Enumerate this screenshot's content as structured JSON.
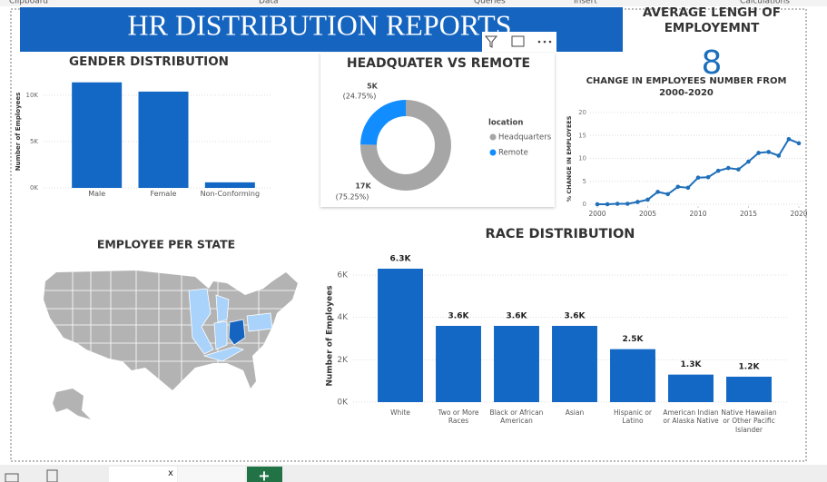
{
  "ribbon": [
    "Clipboard",
    "Data",
    "Queries",
    "Insert",
    "Calculations"
  ],
  "header": {
    "title": "HR DISTRIBUTION REPORTS"
  },
  "kpi": {
    "title": "AVERAGE LENGH OF EMPLOYEMNT",
    "value": 8
  },
  "map": {
    "title": "EMPLOYEE PER STATE"
  },
  "tabs": {
    "close": "x",
    "add": "+"
  },
  "chart_data": [
    {
      "type": "bar",
      "title": "GENDER DISTRIBUTION",
      "y_label": "Number of Employees",
      "categories": [
        "Male",
        "Female",
        "Non-Conforming"
      ],
      "values": [
        11400,
        10400,
        600
      ],
      "color": "#1268c4",
      "ylim": [
        0,
        12000
      ],
      "yticks": [
        {
          "value": 0,
          "label": "0K"
        },
        {
          "value": 5000,
          "label": "5K"
        },
        {
          "value": 10000,
          "label": "10K"
        }
      ],
      "grid": true
    },
    {
      "type": "donut",
      "title": "HEADQUATER VS REMOTE",
      "legend_title": "location",
      "categories": [
        "Headquarters",
        "Remote"
      ],
      "colors": [
        "#a6a6a6",
        "#118dff"
      ],
      "values": [
        75.25,
        24.75
      ],
      "value_labels": [
        "(75.25%)",
        "(24.75%)"
      ],
      "count_labels": [
        "17K",
        "5K"
      ]
    },
    {
      "type": "line",
      "title": "CHANGE IN EMPLOYEES NUMBER FROM 2000-2020",
      "y_label": "% CHANGE IN EMPLOYEES",
      "color": "#1f6fb9",
      "x": [
        2000,
        2001,
        2002,
        2003,
        2004,
        2005,
        2006,
        2007,
        2008,
        2009,
        2010,
        2011,
        2012,
        2013,
        2014,
        2015,
        2016,
        2017,
        2018,
        2019,
        2020
      ],
      "values": [
        0,
        0,
        0.1,
        0.1,
        0.5,
        1.0,
        2.7,
        2.2,
        3.8,
        3.6,
        5.8,
        5.9,
        7.3,
        7.9,
        7.6,
        9.3,
        11.2,
        11.4,
        10.6,
        14.2,
        13.3
      ],
      "xlim": [
        2000,
        2020
      ],
      "xticks": [
        2000,
        2005,
        2010,
        2015,
        2020
      ],
      "ylim": [
        0,
        20
      ],
      "yticks": [
        0,
        5,
        10,
        15,
        20
      ],
      "grid": true
    },
    {
      "type": "bar",
      "title": "RACE DISTRIBUTION",
      "y_label": "Number of Employees",
      "categories": [
        "White",
        "Two or More Races",
        "Black or African American",
        "Asian",
        "Hispanic or Latino",
        "American Indian or Alaska Native",
        "Native Hawaiian or Other Pacific Islander"
      ],
      "values": [
        6300,
        3600,
        3600,
        3600,
        2500,
        1300,
        1200
      ],
      "value_labels": [
        "6.3K",
        "3.6K",
        "3.6K",
        "3.6K",
        "2.5K",
        "1.3K",
        "1.2K"
      ],
      "color": "#1268c4",
      "ylim": [
        0,
        6600
      ],
      "yticks": [
        {
          "value": 0,
          "label": "0K"
        },
        {
          "value": 2000,
          "label": "2K"
        },
        {
          "value": 4000,
          "label": "4K"
        },
        {
          "value": 6000,
          "label": "6K"
        }
      ],
      "grid": true
    }
  ]
}
